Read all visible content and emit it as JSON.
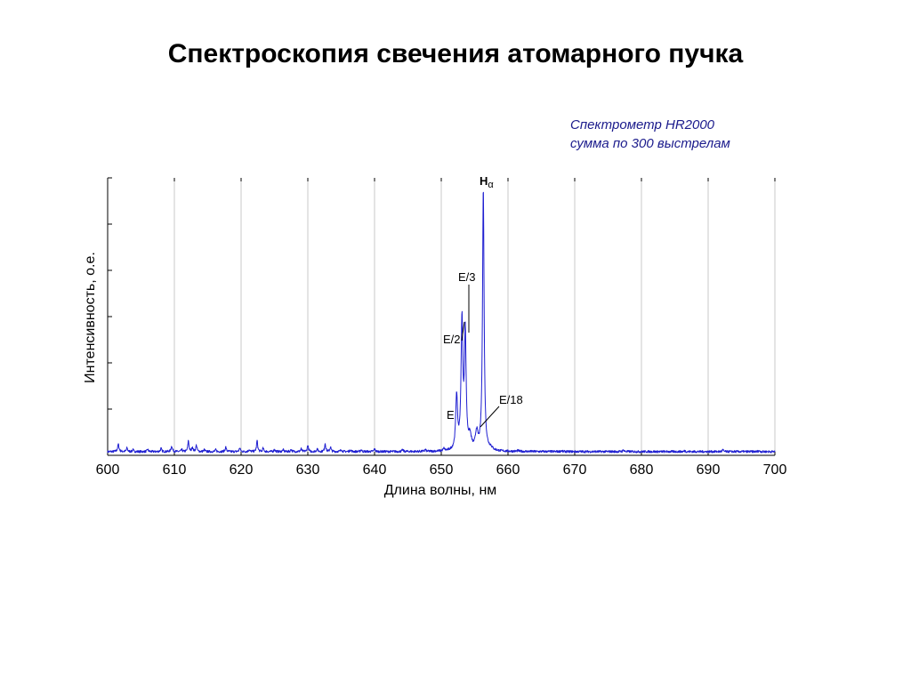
{
  "slide": {
    "title": "Спектроскопия свечения атомарного пучка"
  },
  "note": {
    "line1": "Спектрометр HR2000",
    "line2": "сумма по 300 выстрелам"
  },
  "colors": {
    "spectrum": "#1f1fd1",
    "note": "#1b1b8c",
    "grid": "#c8c8c8",
    "axis": "#000000"
  },
  "chart_data": {
    "type": "line",
    "title": "",
    "xlabel": "Длина волны, нм",
    "ylabel": "Интенсивность, о.е.",
    "xlim": [
      600,
      700
    ],
    "ylim": [
      0,
      6
    ],
    "x_ticks": [
      600,
      610,
      620,
      630,
      640,
      650,
      660,
      670,
      680,
      690,
      700
    ],
    "y_ticks": [
      0,
      1,
      2,
      3,
      4,
      5,
      6
    ],
    "y_tick_labels_shown": false,
    "grid": {
      "vertical": true,
      "horizontal": false
    },
    "baseline": 0.08,
    "peaks": [
      {
        "x": 601.6,
        "y": 0.24,
        "w": 0.12
      },
      {
        "x": 602.9,
        "y": 0.16,
        "w": 0.1
      },
      {
        "x": 603.8,
        "y": 0.12,
        "w": 0.1
      },
      {
        "x": 606.0,
        "y": 0.13,
        "w": 0.1
      },
      {
        "x": 608.0,
        "y": 0.15,
        "w": 0.1
      },
      {
        "x": 609.6,
        "y": 0.2,
        "w": 0.12
      },
      {
        "x": 611.1,
        "y": 0.12,
        "w": 0.1
      },
      {
        "x": 612.1,
        "y": 0.32,
        "w": 0.1
      },
      {
        "x": 612.7,
        "y": 0.18,
        "w": 0.1
      },
      {
        "x": 613.3,
        "y": 0.22,
        "w": 0.1
      },
      {
        "x": 614.5,
        "y": 0.12,
        "w": 0.1
      },
      {
        "x": 616.2,
        "y": 0.12,
        "w": 0.1
      },
      {
        "x": 617.7,
        "y": 0.18,
        "w": 0.1
      },
      {
        "x": 619.8,
        "y": 0.16,
        "w": 0.1
      },
      {
        "x": 621.2,
        "y": 0.12,
        "w": 0.1
      },
      {
        "x": 622.4,
        "y": 0.32,
        "w": 0.1
      },
      {
        "x": 623.3,
        "y": 0.15,
        "w": 0.1
      },
      {
        "x": 625.0,
        "y": 0.13,
        "w": 0.1
      },
      {
        "x": 626.3,
        "y": 0.12,
        "w": 0.1
      },
      {
        "x": 627.5,
        "y": 0.13,
        "w": 0.1
      },
      {
        "x": 629.0,
        "y": 0.14,
        "w": 0.1
      },
      {
        "x": 630.0,
        "y": 0.22,
        "w": 0.1
      },
      {
        "x": 631.4,
        "y": 0.14,
        "w": 0.1
      },
      {
        "x": 632.6,
        "y": 0.26,
        "w": 0.1
      },
      {
        "x": 633.4,
        "y": 0.18,
        "w": 0.1
      },
      {
        "x": 635.0,
        "y": 0.13,
        "w": 0.1
      },
      {
        "x": 636.4,
        "y": 0.12,
        "w": 0.1
      },
      {
        "x": 638.0,
        "y": 0.12,
        "w": 0.1
      },
      {
        "x": 640.0,
        "y": 0.14,
        "w": 0.1
      },
      {
        "x": 644.2,
        "y": 0.12,
        "w": 0.1
      },
      {
        "x": 647.6,
        "y": 0.12,
        "w": 0.1
      },
      {
        "x": 650.4,
        "y": 0.13,
        "w": 0.12
      },
      {
        "x": 652.3,
        "y": 1.25,
        "w": 0.16
      },
      {
        "x": 653.1,
        "y": 2.85,
        "w": 0.16
      },
      {
        "x": 653.6,
        "y": 2.55,
        "w": 0.15
      },
      {
        "x": 654.3,
        "y": 0.35,
        "w": 0.25
      },
      {
        "x": 655.3,
        "y": 0.45,
        "w": 0.22
      },
      {
        "x": 656.3,
        "y": 5.75,
        "w": 0.14
      },
      {
        "x": 657.4,
        "y": 0.13,
        "w": 0.3
      },
      {
        "x": 661.5,
        "y": 0.1,
        "w": 0.1
      },
      {
        "x": 668.0,
        "y": 0.1,
        "w": 0.1
      },
      {
        "x": 677.3,
        "y": 0.12,
        "w": 0.1
      },
      {
        "x": 686.5,
        "y": 0.1,
        "w": 0.1
      },
      {
        "x": 692.2,
        "y": 0.12,
        "w": 0.1
      },
      {
        "x": 697.6,
        "y": 0.1,
        "w": 0.1
      }
    ],
    "annotations": [
      {
        "id": "halpha",
        "label": "H",
        "subscript": "α",
        "x": 656.3,
        "y": 5.75
      },
      {
        "id": "e3",
        "label": "E/3",
        "x": 653.6,
        "y": 2.55
      },
      {
        "id": "e2",
        "label": "E/2",
        "x": 653.1,
        "y": 2.85
      },
      {
        "id": "e18",
        "label": "E/18",
        "x": 655.3,
        "y": 0.45
      },
      {
        "id": "e",
        "label": "E",
        "x": 652.3,
        "y": 1.25
      }
    ]
  }
}
